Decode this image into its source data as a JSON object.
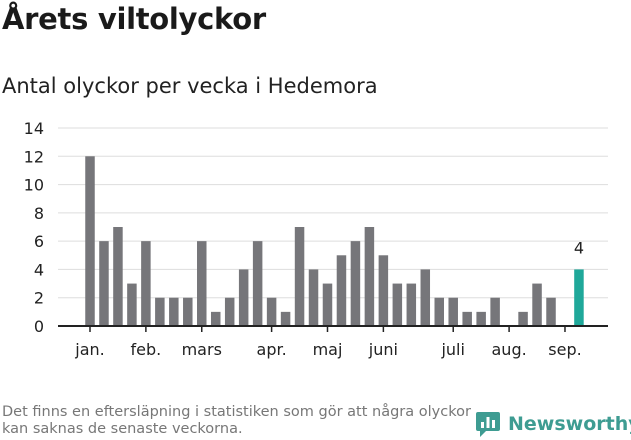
{
  "title": "Årets viltolyckor",
  "subtitle": "Antal olyckor per vecka i Hedemora",
  "footnote": "Det finns en eftersläpning i statistiken som gör att några olyckor kan saknas de senaste veckorna.",
  "brand": {
    "name": "Newsworthy",
    "icon": "newsworthy-logo-icon",
    "color": "#3e9c92"
  },
  "colors": {
    "bar": "#76767a",
    "highlight": "#1fa89a",
    "grid": "#dddddd",
    "axis": "#222222"
  },
  "chart_data": {
    "type": "bar",
    "title": "Antal olyckor per vecka i Hedemora",
    "xlabel": "",
    "ylabel": "",
    "ylim": [
      0,
      14
    ],
    "yticks": [
      0,
      2,
      4,
      6,
      8,
      10,
      12,
      14
    ],
    "grid": true,
    "weeks": [
      1,
      2,
      3,
      4,
      5,
      6,
      7,
      8,
      9,
      10,
      11,
      12,
      13,
      14,
      15,
      16,
      17,
      18,
      19,
      20,
      21,
      22,
      23,
      24,
      25,
      26,
      27,
      28,
      29,
      30,
      31,
      32,
      33,
      34,
      35,
      36
    ],
    "values": [
      12,
      6,
      7,
      3,
      6,
      2,
      2,
      2,
      6,
      1,
      2,
      4,
      6,
      2,
      1,
      7,
      4,
      3,
      5,
      6,
      7,
      5,
      3,
      3,
      4,
      2,
      2,
      1,
      1,
      2,
      0,
      1,
      3,
      2,
      0,
      4
    ],
    "highlight": {
      "week": 36,
      "value": 4,
      "label": "4"
    },
    "month_labels": [
      {
        "label": "jan.",
        "week": 1
      },
      {
        "label": "feb.",
        "week": 5
      },
      {
        "label": "mars",
        "week": 9
      },
      {
        "label": "apr.",
        "week": 14
      },
      {
        "label": "maj",
        "week": 18
      },
      {
        "label": "juni",
        "week": 22
      },
      {
        "label": "juli",
        "week": 27
      },
      {
        "label": "aug.",
        "week": 31
      },
      {
        "label": "sep.",
        "week": 35
      }
    ]
  }
}
